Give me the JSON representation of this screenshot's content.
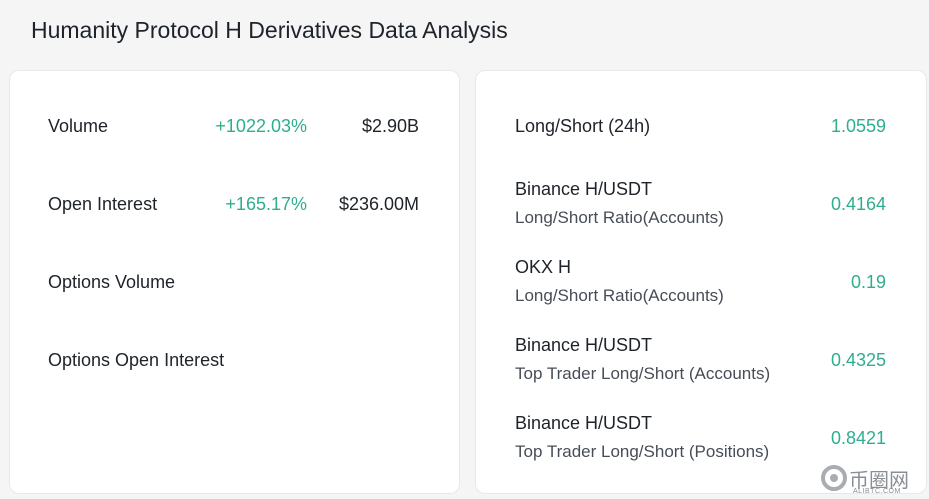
{
  "title": "Humanity Protocol H Derivatives Data Analysis",
  "left": {
    "rows": [
      {
        "label": "Volume",
        "change": "+1022.03%",
        "value": "$2.90B"
      },
      {
        "label": "Open Interest",
        "change": "+165.17%",
        "value": "$236.00M"
      },
      {
        "label": "Options Volume",
        "change": "",
        "value": ""
      },
      {
        "label": "Options Open Interest",
        "change": "",
        "value": ""
      }
    ]
  },
  "right": {
    "rows": [
      {
        "line1": "Long/Short (24h)",
        "line2": "",
        "value": "1.0559"
      },
      {
        "line1": "Binance H/USDT",
        "line2": "Long/Short Ratio(Accounts)",
        "value": "0.4164"
      },
      {
        "line1": "OKX H",
        "line2": "Long/Short Ratio(Accounts)",
        "value": "0.19"
      },
      {
        "line1": "Binance H/USDT",
        "line2": "Top Trader Long/Short (Accounts)",
        "value": "0.4325"
      },
      {
        "line1": "Binance H/USDT",
        "line2": "Top Trader Long/Short (Positions)",
        "value": "0.8421"
      }
    ]
  },
  "watermark": {
    "brand": "币圈网",
    "sub": "ALIBTC.COM"
  },
  "colors": {
    "positive": "#2eae8f",
    "text": "#1e2329",
    "secondary": "#474d57",
    "background": "#f5f5f5"
  }
}
